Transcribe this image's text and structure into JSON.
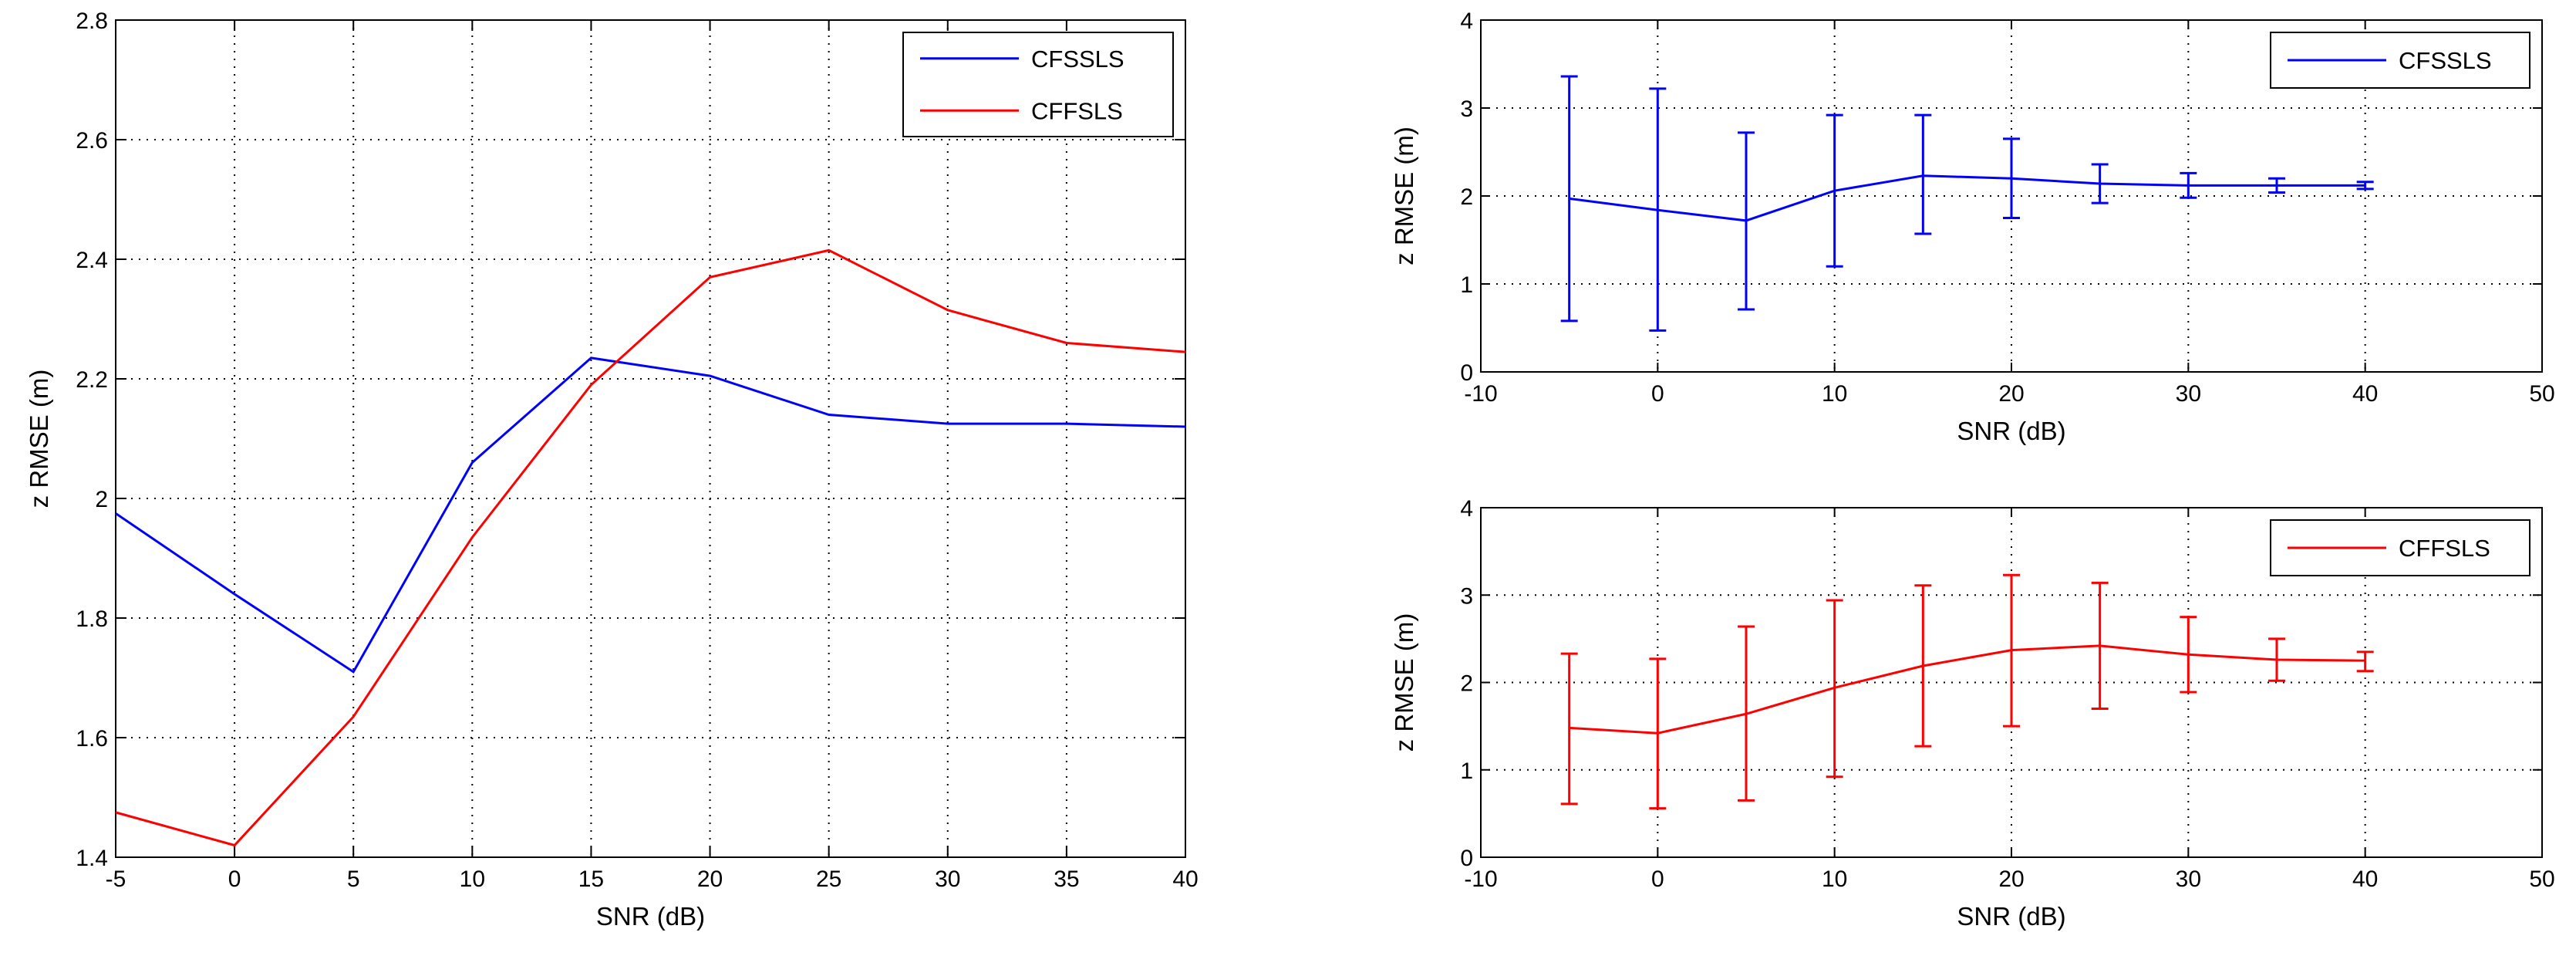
{
  "chart_data": [
    {
      "type": "line",
      "title": "",
      "xlabel": "SNR (dB)",
      "ylabel": "z RMSE (m)",
      "xlim": [
        -5,
        40
      ],
      "ylim": [
        1.4,
        2.8
      ],
      "xticks": [
        -5,
        0,
        5,
        10,
        15,
        20,
        25,
        30,
        35,
        40
      ],
      "yticks": [
        1.4,
        1.6,
        1.8,
        2,
        2.2,
        2.4,
        2.6,
        2.8
      ],
      "xtick_labels": [
        "-5",
        "0",
        "5",
        "10",
        "15",
        "20",
        "25",
        "30",
        "35",
        "40"
      ],
      "ytick_labels": [
        "1.4",
        "1.6",
        "1.8",
        "2",
        "2.2",
        "2.4",
        "2.6",
        "2.8"
      ],
      "grid": true,
      "legend_position": "top-right",
      "x": [
        -5,
        0,
        5,
        10,
        15,
        20,
        25,
        30,
        35,
        40
      ],
      "series": [
        {
          "name": "CFSSLS",
          "color": "#0000ff",
          "values": [
            1.975,
            1.84,
            1.71,
            2.06,
            2.235,
            2.205,
            2.14,
            2.125,
            2.125,
            2.12
          ]
        },
        {
          "name": "CFFSLS",
          "color": "#ff0000",
          "values": [
            1.475,
            1.42,
            1.635,
            1.935,
            2.19,
            2.37,
            2.415,
            2.315,
            2.26,
            2.245
          ]
        }
      ]
    },
    {
      "type": "line",
      "title": "",
      "xlabel": "SNR (dB)",
      "ylabel": "z RMSE (m)",
      "xlim": [
        -10,
        50
      ],
      "ylim": [
        0,
        4
      ],
      "xticks": [
        -10,
        0,
        10,
        20,
        30,
        40,
        50
      ],
      "yticks": [
        0,
        1,
        2,
        3,
        4
      ],
      "xtick_labels": [
        "-10",
        "0",
        "10",
        "20",
        "30",
        "40",
        "50"
      ],
      "ytick_labels": [
        "0",
        "1",
        "2",
        "3",
        "4"
      ],
      "grid": true,
      "legend_position": "top-right",
      "x": [
        -5,
        0,
        5,
        10,
        15,
        20,
        25,
        30,
        35,
        40
      ],
      "series": [
        {
          "name": "CFSSLS",
          "color": "#0000ff",
          "values": [
            1.97,
            1.84,
            1.72,
            2.06,
            2.23,
            2.2,
            2.14,
            2.12,
            2.12,
            2.12
          ],
          "error_lower": [
            0.58,
            0.47,
            0.71,
            1.2,
            1.57,
            1.75,
            1.92,
            1.98,
            2.04,
            2.08
          ],
          "error_upper": [
            3.36,
            3.22,
            2.72,
            2.92,
            2.92,
            2.65,
            2.36,
            2.26,
            2.2,
            2.16
          ]
        }
      ]
    },
    {
      "type": "line",
      "title": "",
      "xlabel": "SNR (dB)",
      "ylabel": "z RMSE (m)",
      "xlim": [
        -10,
        50
      ],
      "ylim": [
        0,
        4
      ],
      "xticks": [
        -10,
        0,
        10,
        20,
        30,
        40,
        50
      ],
      "yticks": [
        0,
        1,
        2,
        3,
        4
      ],
      "xtick_labels": [
        "-10",
        "0",
        "10",
        "20",
        "30",
        "40",
        "50"
      ],
      "ytick_labels": [
        "0",
        "1",
        "2",
        "3",
        "4"
      ],
      "grid": true,
      "legend_position": "top-right",
      "x": [
        -5,
        0,
        5,
        10,
        15,
        20,
        25,
        30,
        35,
        40
      ],
      "series": [
        {
          "name": "CFFSLS",
          "color": "#ff0000",
          "values": [
            1.48,
            1.42,
            1.64,
            1.94,
            2.19,
            2.37,
            2.42,
            2.32,
            2.26,
            2.25
          ],
          "error_lower": [
            0.61,
            0.56,
            0.65,
            0.92,
            1.27,
            1.5,
            1.7,
            1.89,
            2.02,
            2.13
          ],
          "error_upper": [
            2.33,
            2.27,
            2.64,
            2.94,
            3.11,
            3.23,
            3.14,
            2.75,
            2.5,
            2.35
          ]
        }
      ]
    }
  ]
}
